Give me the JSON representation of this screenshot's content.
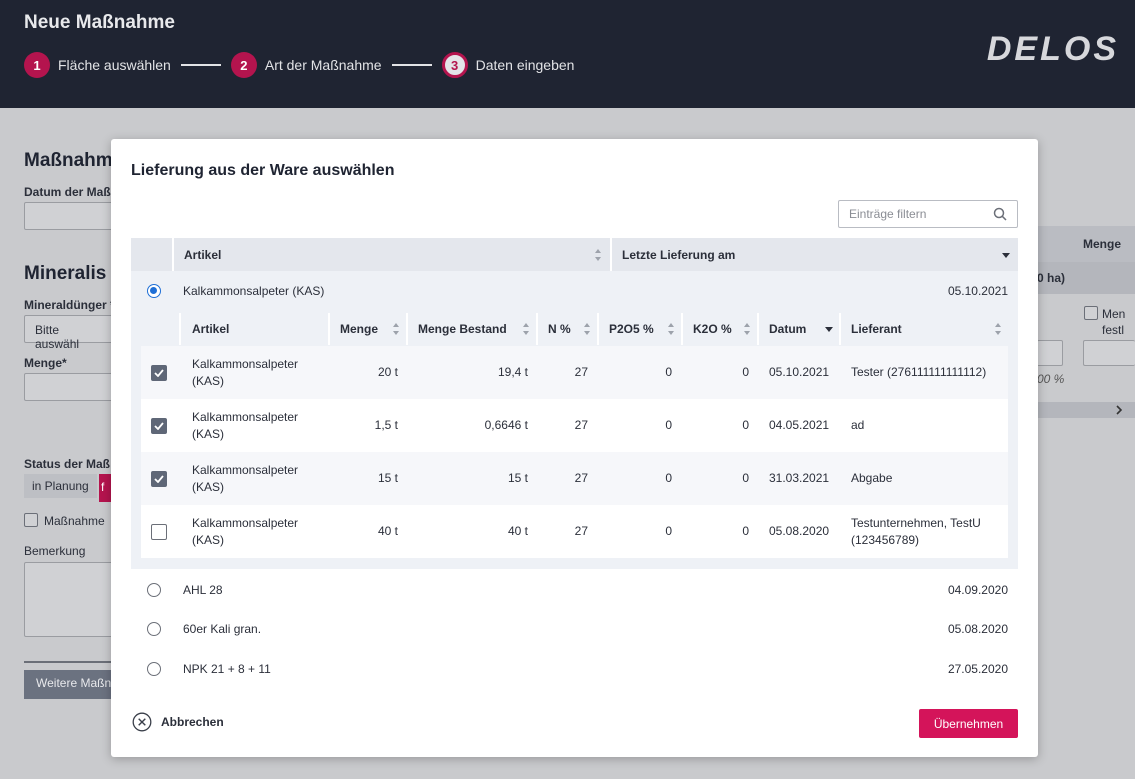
{
  "header": {
    "title": "Neue Maßnahme",
    "logo": "DELOS",
    "steps": [
      {
        "num": "1",
        "label": "Fläche auswählen"
      },
      {
        "num": "2",
        "label": "Art der Maßnahme"
      },
      {
        "num": "3",
        "label": "Daten eingeben"
      }
    ]
  },
  "background": {
    "section1": "Maßnahm",
    "date_label": "Datum der Maß",
    "section2": "Mineralis",
    "fert_label": "Mineraldünger *",
    "fert_value": "Bitte auswähl",
    "amount_label": "Menge*",
    "status_label": "Status der Maß",
    "status_chip": "in Planung",
    "status_chip2": "f",
    "checkbox_label": "Maßnahme",
    "remark_label": "Bemerkung",
    "more_button": "Weitere Maßn",
    "right_col_header": "Menge",
    "right_ha": "0 ha)",
    "right_checkbox_label1": "Men",
    "right_checkbox_label2": "festl",
    "right_pct": "00 %"
  },
  "modal": {
    "title": "Lieferung aus der Ware auswählen",
    "filter_placeholder": "Einträge filtern",
    "columns": {
      "artikel": "Artikel",
      "letzte": "Letzte Lieferung am"
    },
    "rows": [
      {
        "name": "Kalkammonsalpeter (KAS)",
        "date": "05.10.2021",
        "selected": true
      },
      {
        "name": "AHL 28",
        "date": "04.09.2020",
        "selected": false
      },
      {
        "name": "60er Kali gran.",
        "date": "05.08.2020",
        "selected": false
      },
      {
        "name": "NPK 21 + 8 + 11",
        "date": "27.05.2020",
        "selected": false
      }
    ],
    "sub_columns": {
      "artikel": "Artikel",
      "menge": "Menge",
      "bestand": "Menge Bestand",
      "n": "N %",
      "p": "P2O5 %",
      "k": "K2O %",
      "datum": "Datum",
      "lieferant": "Lieferant"
    },
    "sub_rows": [
      {
        "artikel1": "Kalkammonsalpeter",
        "artikel2": "(KAS)",
        "menge": "20 t",
        "bestand": "19,4 t",
        "n": "27",
        "p": "0",
        "k": "0",
        "datum": "05.10.2021",
        "lieferant1": "Tester (276111111111112)",
        "lieferant2": "",
        "checked": true
      },
      {
        "artikel1": "Kalkammonsalpeter",
        "artikel2": "(KAS)",
        "menge": "1,5 t",
        "bestand": "0,6646 t",
        "n": "27",
        "p": "0",
        "k": "0",
        "datum": "04.05.2021",
        "lieferant1": "ad",
        "lieferant2": "",
        "checked": true
      },
      {
        "artikel1": "Kalkammonsalpeter",
        "artikel2": "(KAS)",
        "menge": "15 t",
        "bestand": "15 t",
        "n": "27",
        "p": "0",
        "k": "0",
        "datum": "31.03.2021",
        "lieferant1": "Abgabe",
        "lieferant2": "",
        "checked": true
      },
      {
        "artikel1": "Kalkammonsalpeter",
        "artikel2": "(KAS)",
        "menge": "40 t",
        "bestand": "40 t",
        "n": "27",
        "p": "0",
        "k": "0",
        "datum": "05.08.2020",
        "lieferant1": "Testunternehmen, TestU",
        "lieferant2": "(123456789)",
        "checked": false
      }
    ],
    "cancel": "Abbrechen",
    "submit": "Übernehmen"
  },
  "colors": {
    "brand": "#d4145a",
    "header_bg": "#1f2432",
    "radio": "#1f6fd6"
  }
}
